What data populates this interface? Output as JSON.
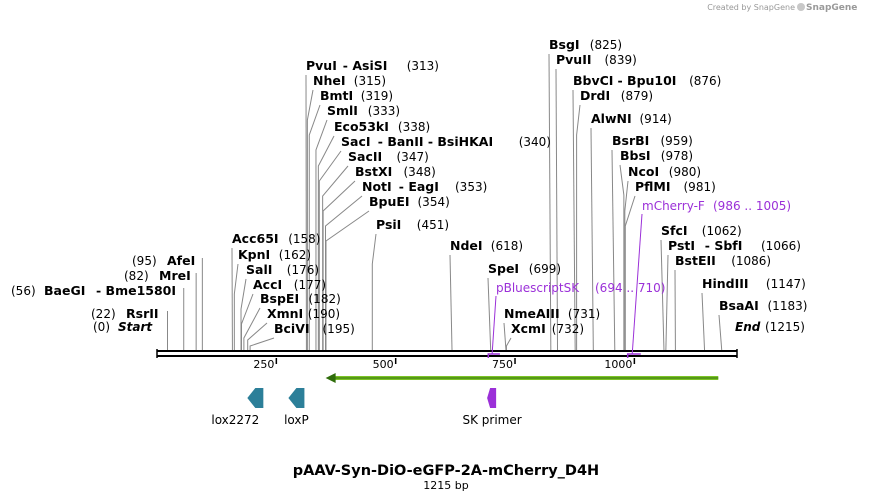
{
  "credit": "Created by SnapGene",
  "sequence": {
    "name": "pAAV-Syn-DiO-eGFP-2A-mCherry_D4H",
    "length_label": "1215 bp",
    "length": 1215,
    "start_label": "Start",
    "end_label": "End",
    "start_pos": "(0)",
    "end_pos": "(1215)"
  },
  "ticks": [
    "250",
    "500",
    "750",
    "1000"
  ],
  "tick_values": [
    250,
    500,
    750,
    1000
  ],
  "sites": [
    {
      "name": "RsrII",
      "pos": "(22)",
      "value": 22
    },
    {
      "name": "BaeGI",
      "alt": "- Bme1580I",
      "pos": "(56)",
      "value": 56
    },
    {
      "name": "MreI",
      "pos": "(82)",
      "value": 82
    },
    {
      "name": "AfeI",
      "pos": "(95)",
      "value": 95
    },
    {
      "name": "Acc65I",
      "pos": "(158)",
      "value": 158
    },
    {
      "name": "KpnI",
      "pos": "(162)",
      "value": 162
    },
    {
      "name": "SalI",
      "pos": "(176)",
      "value": 176
    },
    {
      "name": "AccI",
      "pos": "(177)",
      "value": 177
    },
    {
      "name": "BspEI",
      "pos": "(182)",
      "value": 182
    },
    {
      "name": "XmnI",
      "pos": "(190)",
      "value": 190
    },
    {
      "name": "BciVI",
      "pos": "(195)",
      "value": 195
    },
    {
      "name": "PvuI",
      "alt": "- AsiSI",
      "pos": "(313)",
      "value": 313
    },
    {
      "name": "NheI",
      "pos": "(315)",
      "value": 315
    },
    {
      "name": "BmtI",
      "pos": "(319)",
      "value": 319
    },
    {
      "name": "SmlI",
      "pos": "(333)",
      "value": 333
    },
    {
      "name": "Eco53kI",
      "pos": "(338)",
      "value": 338
    },
    {
      "name": "SacI",
      "alt": "- BanII - BsiHKAI",
      "pos": "(340)",
      "value": 340
    },
    {
      "name": "SacII",
      "pos": "(347)",
      "value": 347
    },
    {
      "name": "BstXI",
      "pos": "(348)",
      "value": 348
    },
    {
      "name": "NotI",
      "alt": "- EagI",
      "pos": "(353)",
      "value": 353
    },
    {
      "name": "BpuEI",
      "pos": "(354)",
      "value": 354
    },
    {
      "name": "PsiI",
      "pos": "(451)",
      "value": 451
    },
    {
      "name": "NdeI",
      "pos": "(618)",
      "value": 618
    },
    {
      "name": "SpeI",
      "pos": "(699)",
      "value": 699
    },
    {
      "name": "NmeAIII",
      "pos": "(731)",
      "value": 731
    },
    {
      "name": "XcmI",
      "pos": "(732)",
      "value": 732
    },
    {
      "name": "BsgI",
      "pos": "(825)",
      "value": 825
    },
    {
      "name": "PvuII",
      "pos": "(839)",
      "value": 839
    },
    {
      "name": "BbvCI",
      "alt": "- Bpu10I",
      "pos": "(876)",
      "value": 876
    },
    {
      "name": "DrdI",
      "pos": "(879)",
      "value": 879
    },
    {
      "name": "AlwNI",
      "pos": "(914)",
      "value": 914
    },
    {
      "name": "BsrBI",
      "pos": "(959)",
      "value": 959
    },
    {
      "name": "BbsI",
      "pos": "(978)",
      "value": 978
    },
    {
      "name": "NcoI",
      "pos": "(980)",
      "value": 980
    },
    {
      "name": "PflMI",
      "pos": "(981)",
      "value": 981
    },
    {
      "name": "SfcI",
      "pos": "(1062)",
      "value": 1062
    },
    {
      "name": "PstI",
      "alt": "- SbfI",
      "pos": "(1066)",
      "value": 1066
    },
    {
      "name": "BstEII",
      "pos": "(1086)",
      "value": 1086
    },
    {
      "name": "HindIII",
      "pos": "(1147)",
      "value": 1147
    },
    {
      "name": "BsaAI",
      "pos": "(1183)",
      "value": 1183
    }
  ],
  "primers": [
    {
      "name": "pBluescriptSK",
      "range": "(694 .. 710)",
      "start": 694,
      "end": 710
    },
    {
      "name": "mCherry-F",
      "range": "(986 .. 1005)",
      "start": 986,
      "end": 1005
    }
  ],
  "features": [
    {
      "name": "lox2272",
      "value": 206,
      "color": "#2c7f99"
    },
    {
      "name": "loxP",
      "value": 292,
      "color": "#2c7f99"
    },
    {
      "name": "SK primer",
      "value": 702,
      "color": "#9b30d8"
    }
  ],
  "gene_arrow": {
    "from": 1180,
    "to": 370,
    "color": "#7cc427"
  }
}
